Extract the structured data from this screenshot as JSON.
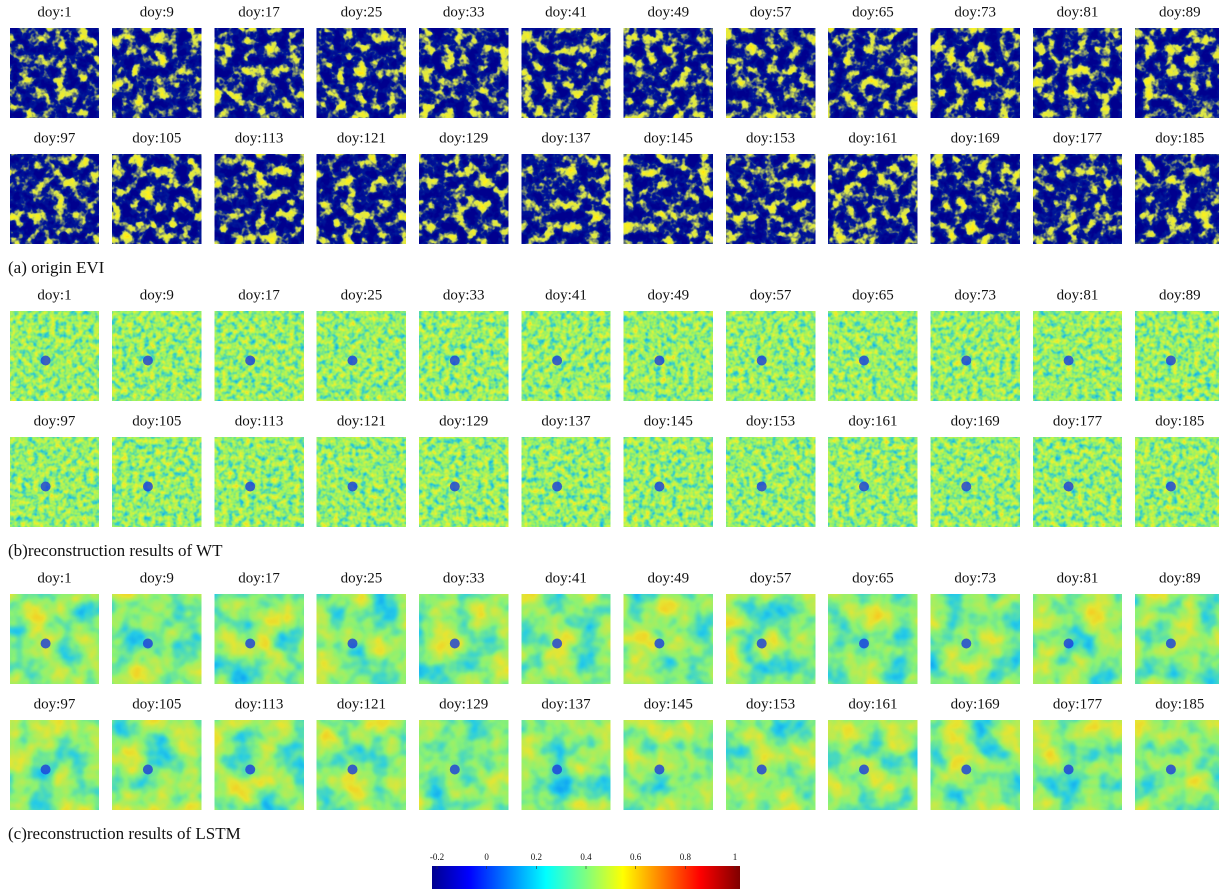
{
  "sections": [
    {
      "caption": "(a) origin EVI",
      "panels": [
        "doy:1",
        "doy:9",
        "doy:17",
        "doy:25",
        "doy:33",
        "doy:41",
        "doy:49",
        "doy:57",
        "doy:65",
        "doy:73",
        "doy:81",
        "doy:89",
        "doy:97",
        "doy:105",
        "doy:113",
        "doy:121",
        "doy:129",
        "doy:137",
        "doy:145",
        "doy:153",
        "doy:161",
        "doy:169",
        "doy:177",
        "doy:185"
      ]
    },
    {
      "caption": "(b)reconstruction results of WT",
      "panels": [
        "doy:1",
        "doy:9",
        "doy:17",
        "doy:25",
        "doy:33",
        "doy:41",
        "doy:49",
        "doy:57",
        "doy:65",
        "doy:73",
        "doy:81",
        "doy:89",
        "doy:97",
        "doy:105",
        "doy:113",
        "doy:121",
        "doy:129",
        "doy:137",
        "doy:145",
        "doy:153",
        "doy:161",
        "doy:169",
        "doy:177",
        "doy:185"
      ]
    },
    {
      "caption": "(c)reconstruction results of LSTM",
      "panels": [
        "doy:1",
        "doy:9",
        "doy:17",
        "doy:25",
        "doy:33",
        "doy:41",
        "doy:49",
        "doy:57",
        "doy:65",
        "doy:73",
        "doy:81",
        "doy:89",
        "doy:97",
        "doy:105",
        "doy:113",
        "doy:121",
        "doy:129",
        "doy:137",
        "doy:145",
        "doy:153",
        "doy:161",
        "doy:169",
        "doy:177",
        "doy:185"
      ]
    }
  ],
  "colorbar": {
    "ticks": [
      -0.2,
      0,
      0.2,
      0.4,
      0.6,
      0.8,
      1
    ]
  }
}
